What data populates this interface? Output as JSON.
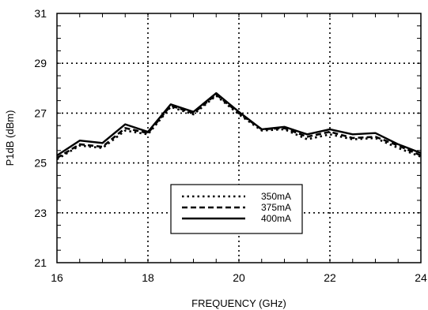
{
  "chart_data": {
    "type": "line",
    "title": "",
    "xlabel": "FREQUENCY (GHz)",
    "ylabel": "P1dB (dBm)",
    "xlim": [
      16,
      24
    ],
    "ylim": [
      21,
      31
    ],
    "xticks": [
      16,
      18,
      20,
      22,
      24
    ],
    "yticks": [
      21,
      23,
      25,
      27,
      29,
      31
    ],
    "grid": true,
    "legend_position": "bottom-center",
    "series": [
      {
        "name": "350mA",
        "style": "dotted",
        "x": [
          16,
          16.5,
          17,
          17.5,
          18,
          18.5,
          19,
          19.5,
          20,
          20.5,
          21,
          21.5,
          22,
          22.5,
          23,
          23.5,
          24
        ],
        "values": [
          25.15,
          25.7,
          25.6,
          26.3,
          26.15,
          27.25,
          26.95,
          27.7,
          26.95,
          26.3,
          26.35,
          25.95,
          26.15,
          25.95,
          26.0,
          25.6,
          25.25
        ]
      },
      {
        "name": "375mA",
        "style": "dashed",
        "x": [
          16,
          16.5,
          17,
          17.5,
          18,
          18.5,
          19,
          19.5,
          20,
          20.5,
          21,
          21.5,
          22,
          22.5,
          23,
          23.5,
          24
        ],
        "values": [
          25.2,
          25.75,
          25.65,
          26.4,
          26.2,
          27.3,
          27.0,
          27.75,
          27.0,
          26.35,
          26.4,
          26.05,
          26.25,
          26.0,
          26.05,
          25.7,
          25.3
        ]
      },
      {
        "name": "400mA",
        "style": "solid",
        "x": [
          16,
          16.5,
          17,
          17.5,
          18,
          18.5,
          19,
          19.5,
          20,
          20.5,
          21,
          21.5,
          22,
          22.5,
          23,
          23.5,
          24
        ],
        "values": [
          25.3,
          25.9,
          25.8,
          26.55,
          26.25,
          27.35,
          27.05,
          27.8,
          27.05,
          26.35,
          26.45,
          26.15,
          26.35,
          26.15,
          26.2,
          25.75,
          25.4
        ]
      }
    ]
  }
}
